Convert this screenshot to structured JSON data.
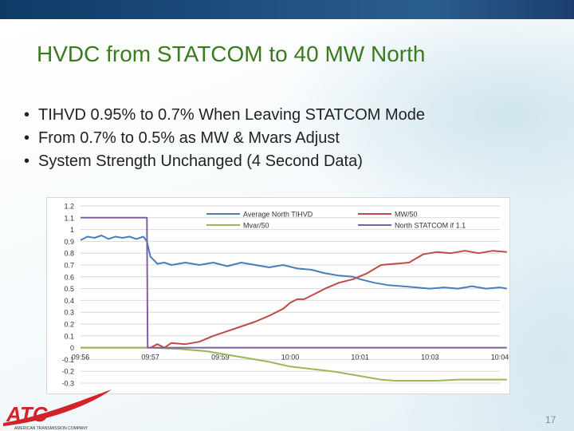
{
  "slide": {
    "title": "HVDC from STATCOM to 40 MW North",
    "bullets": [
      "TIHVD 0.95% to 0.7% When Leaving STATCOM Mode",
      "From 0.7% to 0.5% as MW & Mvars Adjust",
      "System Strength Unchanged (4 Second Data)"
    ],
    "bullet_symbol": "•",
    "slide_number": "17",
    "logo_text": "ATC",
    "logo_subtext": "AMERICAN TRANSMISSION COMPANY"
  },
  "colors": {
    "title": "#3b7a1e",
    "tihvd": "#4a7ebb",
    "mw": "#be4b48",
    "mvar": "#98b954",
    "statcom": "#7d60a0",
    "logo_red": "#d2232a"
  },
  "chart_data": {
    "type": "line",
    "x": [
      "09:56",
      "09:57",
      "09:59",
      "10:00",
      "10:01",
      "10:03",
      "10:04"
    ],
    "ylim": [
      -0.3,
      1.2
    ],
    "yticks": [
      "1.2",
      "1.1",
      "1",
      "0.9",
      "0.8",
      "0.7",
      "0.6",
      "0.5",
      "0.4",
      "0.3",
      "0.2",
      "0.1",
      "0",
      "-0.1",
      "-0.2",
      "-0.3"
    ],
    "grid": true,
    "legend_position": "top",
    "series": [
      {
        "name": "Average North TIHVD",
        "points": [
          [
            0.0,
            0.91
          ],
          [
            0.1,
            0.94
          ],
          [
            0.2,
            0.93
          ],
          [
            0.3,
            0.95
          ],
          [
            0.4,
            0.92
          ],
          [
            0.5,
            0.94
          ],
          [
            0.6,
            0.93
          ],
          [
            0.7,
            0.94
          ],
          [
            0.8,
            0.92
          ],
          [
            0.9,
            0.94
          ],
          [
            0.95,
            0.9
          ],
          [
            1.0,
            0.77
          ],
          [
            1.1,
            0.71
          ],
          [
            1.2,
            0.72
          ],
          [
            1.3,
            0.7
          ],
          [
            1.5,
            0.72
          ],
          [
            1.7,
            0.7
          ],
          [
            1.9,
            0.72
          ],
          [
            2.1,
            0.69
          ],
          [
            2.3,
            0.72
          ],
          [
            2.5,
            0.7
          ],
          [
            2.7,
            0.68
          ],
          [
            2.9,
            0.7
          ],
          [
            3.1,
            0.67
          ],
          [
            3.3,
            0.66
          ],
          [
            3.5,
            0.63
          ],
          [
            3.7,
            0.61
          ],
          [
            3.9,
            0.6
          ],
          [
            4.0,
            0.58
          ],
          [
            4.2,
            0.55
          ],
          [
            4.4,
            0.53
          ],
          [
            4.6,
            0.52
          ],
          [
            4.8,
            0.51
          ],
          [
            5.0,
            0.5
          ],
          [
            5.2,
            0.51
          ],
          [
            5.4,
            0.5
          ],
          [
            5.6,
            0.52
          ],
          [
            5.8,
            0.5
          ],
          [
            6.0,
            0.51
          ],
          [
            6.1,
            0.5
          ]
        ]
      },
      {
        "name": "MW/50",
        "points": [
          [
            0.0,
            0.0
          ],
          [
            0.8,
            0.0
          ],
          [
            1.0,
            0.0
          ],
          [
            1.1,
            0.03
          ],
          [
            1.2,
            0.0
          ],
          [
            1.3,
            0.04
          ],
          [
            1.5,
            0.03
          ],
          [
            1.7,
            0.05
          ],
          [
            1.9,
            0.1
          ],
          [
            2.1,
            0.14
          ],
          [
            2.3,
            0.18
          ],
          [
            2.5,
            0.22
          ],
          [
            2.7,
            0.27
          ],
          [
            2.9,
            0.33
          ],
          [
            3.0,
            0.38
          ],
          [
            3.1,
            0.41
          ],
          [
            3.2,
            0.41
          ],
          [
            3.3,
            0.44
          ],
          [
            3.5,
            0.5
          ],
          [
            3.7,
            0.55
          ],
          [
            3.9,
            0.58
          ],
          [
            4.1,
            0.63
          ],
          [
            4.3,
            0.7
          ],
          [
            4.5,
            0.71
          ],
          [
            4.7,
            0.72
          ],
          [
            4.9,
            0.79
          ],
          [
            5.1,
            0.81
          ],
          [
            5.3,
            0.8
          ],
          [
            5.5,
            0.82
          ],
          [
            5.7,
            0.8
          ],
          [
            5.9,
            0.82
          ],
          [
            6.1,
            0.81
          ]
        ]
      },
      {
        "name": "Mvar/50",
        "points": [
          [
            0.0,
            0.0
          ],
          [
            1.0,
            0.0
          ],
          [
            1.4,
            -0.01
          ],
          [
            1.8,
            -0.03
          ],
          [
            2.1,
            -0.06
          ],
          [
            2.4,
            -0.09
          ],
          [
            2.7,
            -0.12
          ],
          [
            3.0,
            -0.16
          ],
          [
            3.3,
            -0.18
          ],
          [
            3.6,
            -0.2
          ],
          [
            3.9,
            -0.23
          ],
          [
            4.1,
            -0.25
          ],
          [
            4.3,
            -0.27
          ],
          [
            4.5,
            -0.28
          ],
          [
            4.8,
            -0.28
          ],
          [
            5.1,
            -0.28
          ],
          [
            5.4,
            -0.27
          ],
          [
            5.8,
            -0.27
          ],
          [
            6.1,
            -0.27
          ]
        ]
      },
      {
        "name": "North STATCOM if 1.1",
        "points": [
          [
            0.0,
            1.1
          ],
          [
            0.95,
            1.1
          ],
          [
            0.96,
            0.0
          ],
          [
            6.1,
            0.0
          ]
        ]
      }
    ]
  }
}
